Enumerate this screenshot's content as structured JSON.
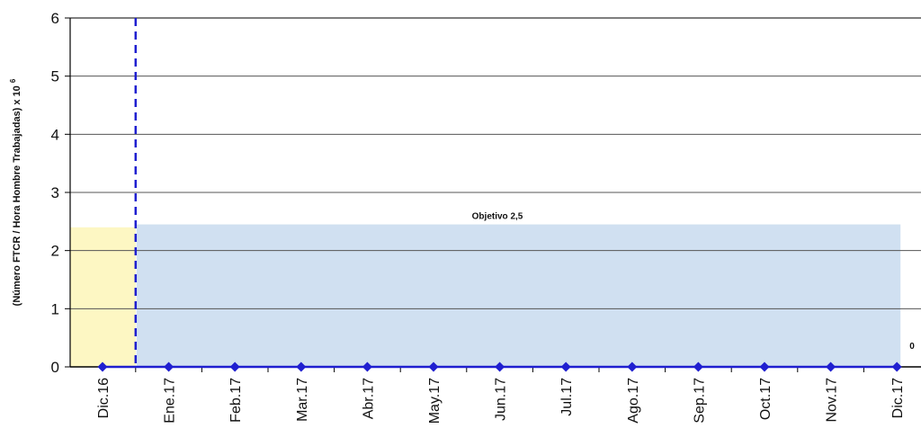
{
  "chart_data": {
    "type": "line",
    "title": "",
    "xlabel": "",
    "ylabel": "(Número FTCR / Hora Hombre Trabajadas) x 10",
    "ylabel_sup": "6",
    "categories": [
      "Dic.16",
      "Ene.17",
      "Feb.17",
      "Mar.17",
      "Abr.17",
      "May.17",
      "Jun.17",
      "Jul.17",
      "Ago.17",
      "Sep.17",
      "Oct.17",
      "Nov.17",
      "Dic.17"
    ],
    "yticks": [
      "0",
      "1",
      "2",
      "3",
      "4",
      "5",
      "6"
    ],
    "ylim": [
      0,
      6
    ],
    "series": [
      {
        "values": [
          0,
          0,
          0,
          0,
          0,
          0,
          0,
          0,
          0,
          0,
          0,
          0,
          0
        ],
        "color": "#1f1fd0"
      }
    ],
    "baseline_band": {
      "from_category": "Dic.16",
      "to_category": "Dic.16",
      "value": 2.4,
      "color": "#fdf7c3"
    },
    "target_band": {
      "from_category": "Ene.17",
      "to_category": "Dic.17",
      "value": 2.45,
      "color": "#d0e0f1"
    },
    "target_label": "Objetivo 2,5",
    "separator": {
      "between": [
        "Dic.16",
        "Ene.17"
      ],
      "color": "#1f1fd0"
    },
    "last_point_label": "0",
    "grid": true,
    "legend": "none"
  }
}
